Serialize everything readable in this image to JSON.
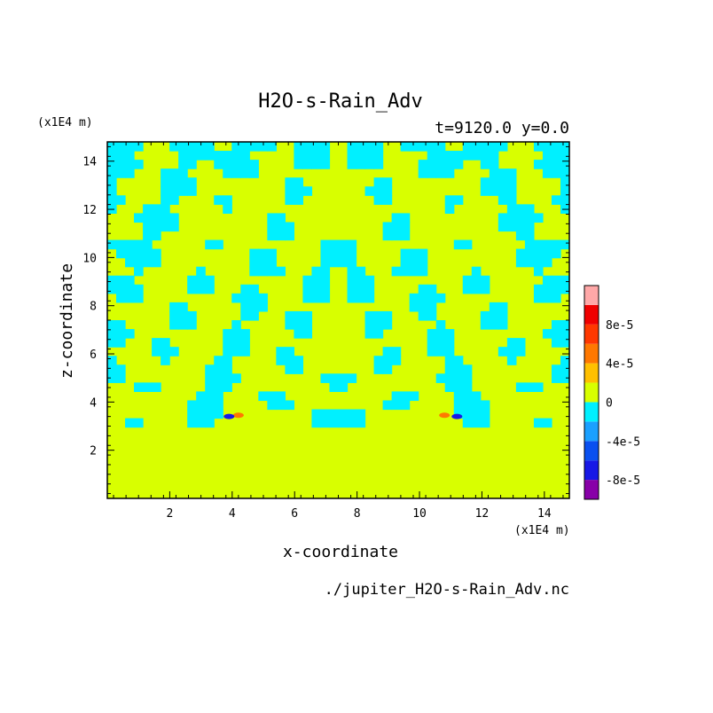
{
  "chart_data": {
    "type": "heatmap",
    "title": "H2O-s-Rain_Adv",
    "subtitle": "t=9120.0 y=0.0",
    "xlabel": "x-coordinate",
    "ylabel": "z-coordinate",
    "x_unit": "(x1E4 m)",
    "y_unit": "(x1E4 m)",
    "source_file": "./jupiter_H2O-s-Rain_Adv.nc",
    "xlim": [
      0,
      14.8
    ],
    "ylim": [
      0,
      14.8
    ],
    "xticks": [
      2,
      4,
      6,
      8,
      10,
      12,
      14
    ],
    "yticks": [
      2,
      4,
      6,
      8,
      10,
      12,
      14
    ],
    "field_mostly": "0 / -2e-5 (yellow-green / cyan, mirror symmetric about x=7.4)",
    "colorbar": {
      "levels": [
        {
          "range": [
            -0.0001,
            -8e-05
          ],
          "color": "#8800a8"
        },
        {
          "range": [
            -8e-05,
            -6e-05
          ],
          "color": "#1818e6"
        },
        {
          "range": [
            -6e-05,
            -4e-05
          ],
          "color": "#0a50f0"
        },
        {
          "range": [
            -4e-05,
            -2e-05
          ],
          "color": "#1aa0ff"
        },
        {
          "range": [
            -2e-05,
            0
          ],
          "color": "#00f0ff"
        },
        {
          "range": [
            0,
            2e-05
          ],
          "color": "#d8ff00"
        },
        {
          "range": [
            2e-05,
            4e-05
          ],
          "color": "#ffc000"
        },
        {
          "range": [
            4e-05,
            6e-05
          ],
          "color": "#ff7800"
        },
        {
          "range": [
            6e-05,
            8e-05
          ],
          "color": "#ff3800"
        },
        {
          "range": [
            8e-05,
            0.0001
          ],
          "color": "#f00000"
        },
        {
          "range": [
            0.0001,
            0.00012
          ],
          "color": "#ffa8a8"
        }
      ],
      "tick_labels": [
        "8e-5",
        "4e-5",
        "0",
        "-4e-5",
        "-8e-5"
      ]
    },
    "features": [
      {
        "x": 4.2,
        "z": 3.45,
        "value": 4e-05,
        "color": "#ff7800"
      },
      {
        "x": 3.9,
        "z": 3.4,
        "value": -6e-05,
        "color": "#1818e6"
      },
      {
        "x": 10.8,
        "z": 3.45,
        "value": 4e-05,
        "color": "#ff7800"
      },
      {
        "x": 11.2,
        "z": 3.4,
        "value": -6e-05,
        "color": "#1818e6"
      }
    ]
  }
}
